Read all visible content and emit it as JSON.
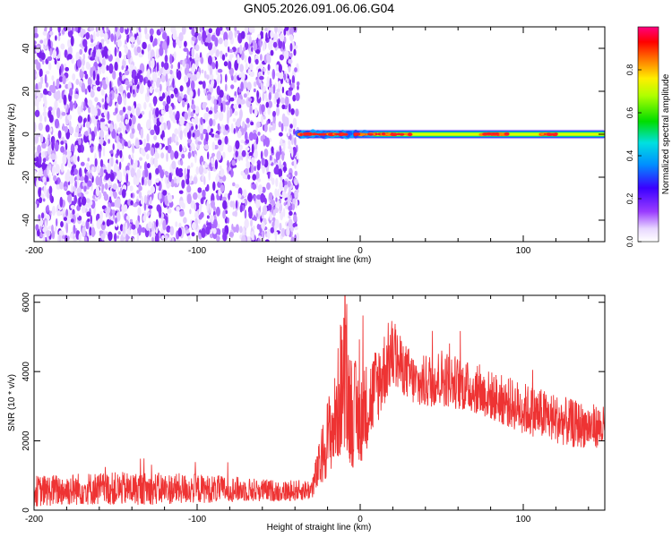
{
  "title": "GN05.2026.091.06.06.G04",
  "chart_data": [
    {
      "type": "heatmap",
      "xlabel": "Height of straight line (km)",
      "ylabel": "Frequency (Hz)",
      "xlim": [
        -200,
        150
      ],
      "ylim": [
        -50,
        50
      ],
      "xticks": [
        -200,
        -100,
        0,
        100
      ],
      "yticks": [
        -40,
        -20,
        0,
        20,
        40
      ],
      "colorbar": {
        "label": "Normalized spectral amplitude",
        "range": [
          0,
          1
        ],
        "ticks": [
          0.0,
          0.2,
          0.4,
          0.6,
          0.8
        ],
        "tick_labels": [
          "0.0",
          "0.2",
          "0.4",
          "0.6",
          "0.8"
        ]
      },
      "regions": [
        {
          "x": [
            -200,
            -38
          ],
          "y": [
            -50,
            50
          ],
          "description": "broadband low-amplitude noise",
          "amplitude": [
            0.0,
            0.15
          ]
        },
        {
          "x": [
            -38,
            150
          ],
          "y": [
            -3,
            3
          ],
          "description": "narrow band centred at 0 Hz",
          "peak_amplitude": 0.95,
          "peak_band_centers": [
            -12,
            10,
            82,
            90
          ]
        }
      ]
    },
    {
      "type": "line",
      "xlabel": "Height of straight line (km)",
      "ylabel": "SNR (10 * v/v)",
      "xlim": [
        -200,
        150
      ],
      "ylim": [
        0,
        6200
      ],
      "xticks": [
        -200,
        -100,
        0,
        100
      ],
      "yticks": [
        0,
        2000,
        4000,
        6000
      ],
      "color": "#ee3333",
      "envelope": [
        {
          "x": -200,
          "low": 100,
          "high": 1000
        },
        {
          "x": -170,
          "low": 150,
          "high": 1100
        },
        {
          "x": -130,
          "low": 150,
          "high": 1100
        },
        {
          "x": -100,
          "low": 200,
          "high": 1050
        },
        {
          "x": -70,
          "low": 250,
          "high": 950
        },
        {
          "x": -45,
          "low": 250,
          "high": 850
        },
        {
          "x": -30,
          "low": 300,
          "high": 900
        },
        {
          "x": -25,
          "low": 600,
          "high": 2000
        },
        {
          "x": -20,
          "low": 1000,
          "high": 3300
        },
        {
          "x": -15,
          "low": 1300,
          "high": 4000
        },
        {
          "x": -11,
          "low": 1600,
          "high": 6100
        },
        {
          "x": -5,
          "low": 1200,
          "high": 4600
        },
        {
          "x": 0,
          "low": 1300,
          "high": 4000
        },
        {
          "x": 10,
          "low": 2400,
          "high": 4800
        },
        {
          "x": 19,
          "low": 3500,
          "high": 5600
        },
        {
          "x": 25,
          "low": 3400,
          "high": 5000
        },
        {
          "x": 35,
          "low": 2900,
          "high": 4400
        },
        {
          "x": 50,
          "low": 3000,
          "high": 4700
        },
        {
          "x": 70,
          "low": 2800,
          "high": 4200
        },
        {
          "x": 100,
          "low": 2200,
          "high": 3700
        },
        {
          "x": 130,
          "low": 1800,
          "high": 3200
        },
        {
          "x": 150,
          "low": 1800,
          "high": 3000
        }
      ]
    }
  ]
}
